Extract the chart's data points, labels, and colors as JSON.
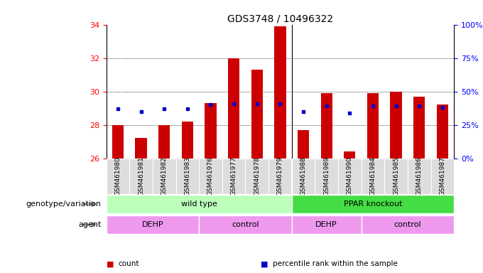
{
  "title": "GDS3748 / 10496322",
  "samples": [
    "GSM461980",
    "GSM461981",
    "GSM461982",
    "GSM461983",
    "GSM461976",
    "GSM461977",
    "GSM461978",
    "GSM461979",
    "GSM461988",
    "GSM461989",
    "GSM461990",
    "GSM461984",
    "GSM461985",
    "GSM461986",
    "GSM461987"
  ],
  "counts": [
    28.0,
    27.2,
    28.0,
    28.2,
    29.3,
    32.0,
    31.3,
    33.9,
    27.7,
    29.9,
    26.4,
    29.9,
    30.0,
    29.7,
    29.2
  ],
  "percentile_pct": [
    37,
    35,
    37,
    37,
    40,
    41,
    41,
    41,
    35,
    39,
    34,
    39,
    39,
    39,
    38
  ],
  "ylim_left": [
    26,
    34
  ],
  "ylim_right": [
    0,
    100
  ],
  "yticks_left": [
    26,
    28,
    30,
    32,
    34
  ],
  "yticks_right": [
    0,
    25,
    50,
    75,
    100
  ],
  "bar_color": "#cc0000",
  "dot_color": "#0000cc",
  "bar_bottom": 26,
  "genotype_groups": [
    {
      "label": "wild type",
      "start": 0,
      "end": 8,
      "color": "#bbffbb"
    },
    {
      "label": "PPAR knockout",
      "start": 8,
      "end": 15,
      "color": "#44dd44"
    }
  ],
  "agent_groups": [
    {
      "label": "DEHP",
      "start": 0,
      "end": 4,
      "color": "#ee99ee"
    },
    {
      "label": "control",
      "start": 4,
      "end": 8,
      "color": "#ee99ee"
    },
    {
      "label": "DEHP",
      "start": 8,
      "end": 11,
      "color": "#ee99ee"
    },
    {
      "label": "control",
      "start": 11,
      "end": 15,
      "color": "#ee99ee"
    }
  ],
  "legend_items": [
    {
      "label": "count",
      "color": "#cc0000"
    },
    {
      "label": "percentile rank within the sample",
      "color": "#0000cc"
    }
  ],
  "background_color": "#ffffff",
  "title_fontsize": 10,
  "sample_label_fontsize": 6.5,
  "annotation_fontsize": 8,
  "group_label_fontsize": 8
}
